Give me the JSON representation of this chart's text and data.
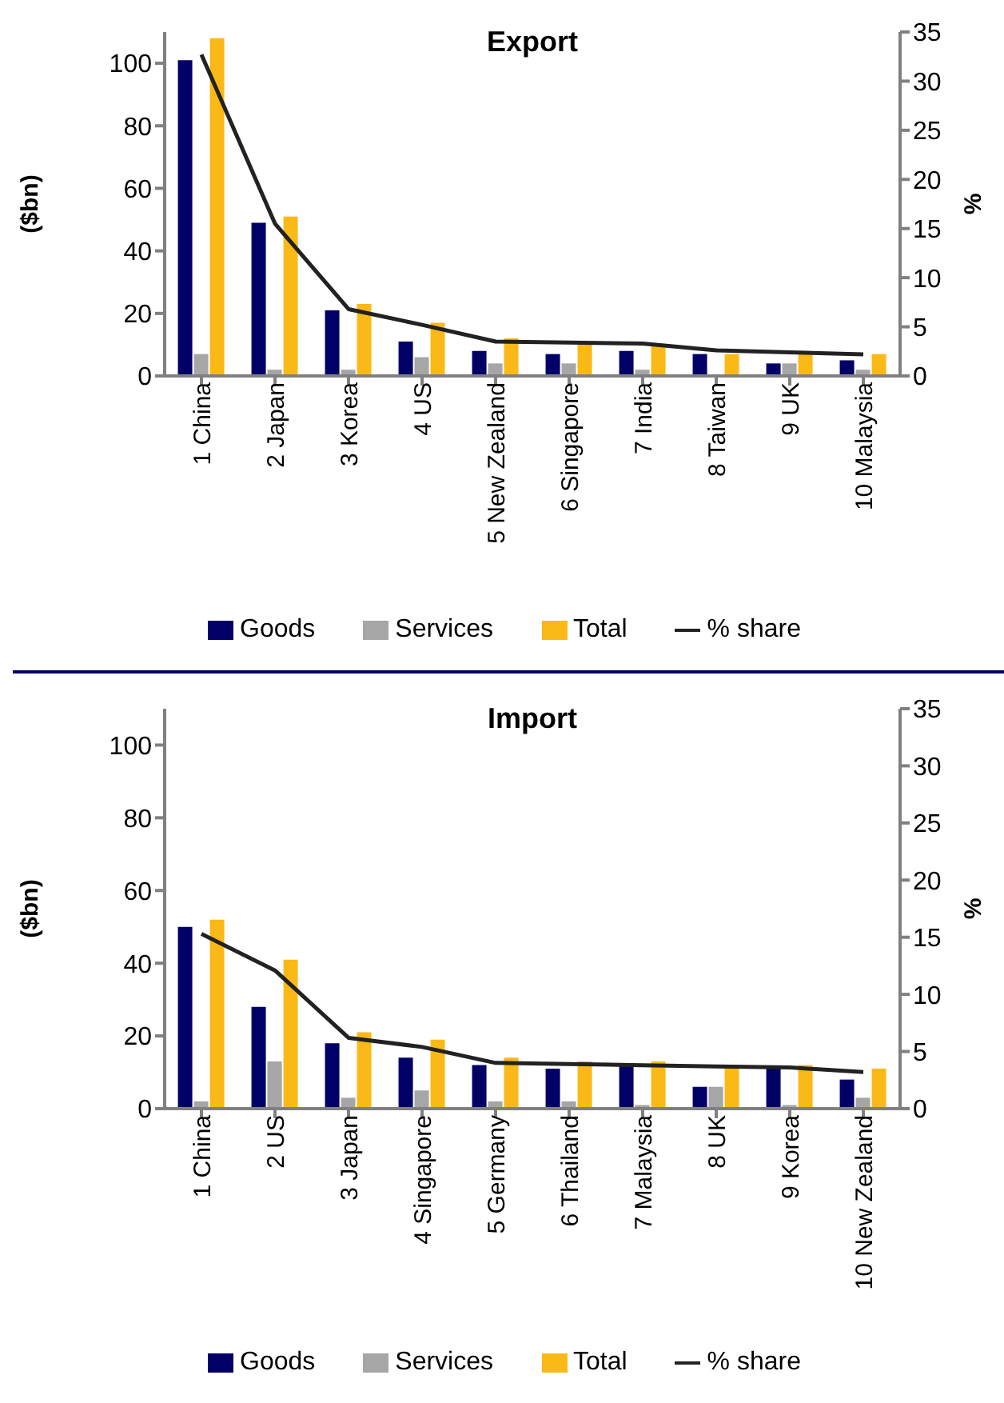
{
  "chart_data": [
    {
      "type": "bar",
      "title": "Export",
      "ylabel": "($bn)",
      "y2label": "%",
      "categories": [
        "1 China",
        "2 Japan",
        "3 Korea",
        "4 US",
        "5 New Zealand",
        "6 Singapore",
        "7 India",
        "8 Taiwan",
        "9 UK",
        "10 Malaysia"
      ],
      "series": [
        {
          "name": "Goods",
          "color": "#000066",
          "values": [
            101,
            49,
            21,
            11,
            8,
            7,
            8,
            7,
            4,
            5
          ]
        },
        {
          "name": "Services",
          "color": "#a6a6a6",
          "values": [
            7,
            2,
            2,
            6,
            4,
            4,
            2,
            null,
            4,
            2
          ]
        },
        {
          "name": "Total",
          "color": "#fbb917",
          "values": [
            108,
            51,
            23,
            17,
            12,
            11,
            10,
            7,
            7,
            7
          ]
        },
        {
          "name": "% share",
          "type": "line",
          "axis": "y2",
          "color": "#222222",
          "values": [
            32.7,
            15.5,
            6.8,
            5.2,
            3.5,
            3.4,
            3.3,
            2.6,
            2.4,
            2.2
          ]
        }
      ],
      "ylim": [
        0,
        110
      ],
      "yticks": [
        0,
        20,
        40,
        60,
        80,
        100
      ],
      "y2lim": [
        0,
        35
      ],
      "y2ticks": [
        0,
        5,
        10,
        15,
        20,
        25,
        30,
        35
      ],
      "grid": false,
      "legend": "bottom",
      "marker": "none"
    },
    {
      "type": "bar",
      "title": "Import",
      "ylabel": "($bn)",
      "y2label": "%",
      "categories": [
        "1 China",
        "2 US",
        "3 Japan",
        "4 Singapore",
        "5 Germany",
        "6 Thailand",
        "7 Malaysia",
        "8 UK",
        "9 Korea",
        "10 New Zealand"
      ],
      "series": [
        {
          "name": "Goods",
          "color": "#000066",
          "values": [
            50,
            28,
            18,
            14,
            12,
            11,
            12,
            6,
            11,
            8
          ]
        },
        {
          "name": "Services",
          "color": "#a6a6a6",
          "values": [
            2,
            13,
            3,
            5,
            2,
            2,
            1,
            6,
            1,
            3
          ]
        },
        {
          "name": "Total",
          "color": "#fbb917",
          "values": [
            52,
            41,
            21,
            19,
            14,
            13,
            13,
            12,
            12,
            11
          ]
        },
        {
          "name": "% share",
          "type": "line",
          "axis": "y2",
          "color": "#222222",
          "values": [
            15.3,
            12.1,
            6.2,
            5.4,
            4.0,
            3.9,
            3.8,
            3.7,
            3.6,
            3.2
          ]
        }
      ],
      "ylim": [
        0,
        110
      ],
      "yticks": [
        0,
        20,
        40,
        60,
        80,
        100
      ],
      "y2lim": [
        0,
        35
      ],
      "y2ticks": [
        0,
        5,
        10,
        15,
        20,
        25,
        30,
        35
      ],
      "grid": false,
      "legend": "bottom",
      "marker": "none"
    }
  ]
}
